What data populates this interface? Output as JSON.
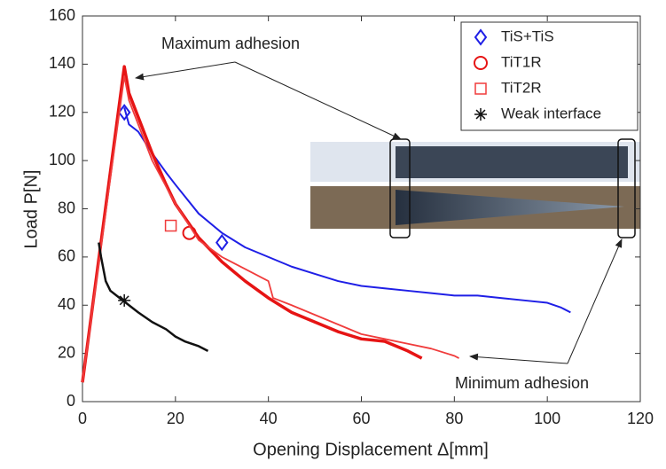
{
  "chart_data": {
    "type": "line",
    "xlabel": "Opening Displacement  Δ[mm]",
    "ylabel": "Load  P[N]",
    "xlim": [
      0,
      120
    ],
    "xticks": [
      0,
      20,
      40,
      60,
      80,
      100,
      120
    ],
    "ylim": [
      0,
      160
    ],
    "yticks": [
      0,
      20,
      40,
      60,
      80,
      100,
      120,
      140,
      160
    ],
    "grid": false,
    "legend": "upper right",
    "annotations": [
      "Maximum adhesion",
      "Minimum adhesion"
    ],
    "series": [
      {
        "name": "TiS+TiS",
        "color": "#1f1fe6",
        "marker": "diamond",
        "width": 2,
        "x": [
          9,
          10,
          12,
          15,
          18,
          20,
          25,
          30,
          35,
          40,
          45,
          50,
          55,
          60,
          65,
          70,
          75,
          80,
          85,
          90,
          95,
          100,
          103,
          105
        ],
        "values": [
          122,
          115,
          112,
          103,
          95,
          90,
          78,
          70,
          64,
          60,
          56,
          53,
          50,
          48,
          47,
          46,
          45,
          44,
          44,
          43,
          42,
          41,
          39,
          37
        ],
        "marker_x": [
          9,
          30
        ],
        "marker_y": [
          120,
          66
        ]
      },
      {
        "name": "TiT1R",
        "color": "#e61414",
        "marker": "circle",
        "width": 3.5,
        "x": [
          0,
          9,
          10,
          12,
          15,
          18,
          20,
          25,
          30,
          35,
          40,
          45,
          50,
          55,
          60,
          65,
          70,
          73
        ],
        "values": [
          8,
          139,
          128,
          118,
          103,
          90,
          82,
          68,
          58,
          50,
          43,
          37,
          33,
          29,
          26,
          25,
          21,
          18
        ],
        "marker_x": [
          23
        ],
        "marker_y": [
          70
        ]
      },
      {
        "name": "TiT2R",
        "color": "#f03c3c",
        "marker": "square",
        "width": 1.8,
        "x": [
          0,
          9,
          10,
          15,
          20,
          25,
          30,
          35,
          40,
          41,
          45,
          50,
          55,
          60,
          65,
          70,
          75,
          80,
          81
        ],
        "values": [
          8,
          135,
          125,
          100,
          82,
          67,
          60,
          55,
          50,
          43,
          40,
          36,
          32,
          28,
          26,
          24,
          22,
          19,
          18
        ],
        "marker_x": [
          19
        ],
        "marker_y": [
          73
        ]
      },
      {
        "name": "Weak interface",
        "color": "#111111",
        "marker": "star",
        "width": 2.5,
        "x": [
          3.5,
          4,
          5,
          6,
          8,
          10,
          12,
          15,
          18,
          20,
          22,
          25,
          27
        ],
        "values": [
          66,
          60,
          50,
          46,
          43,
          40,
          37,
          33,
          30,
          27,
          25,
          23,
          21
        ],
        "marker_x": [
          9
        ],
        "marker_y": [
          42
        ]
      }
    ]
  }
}
